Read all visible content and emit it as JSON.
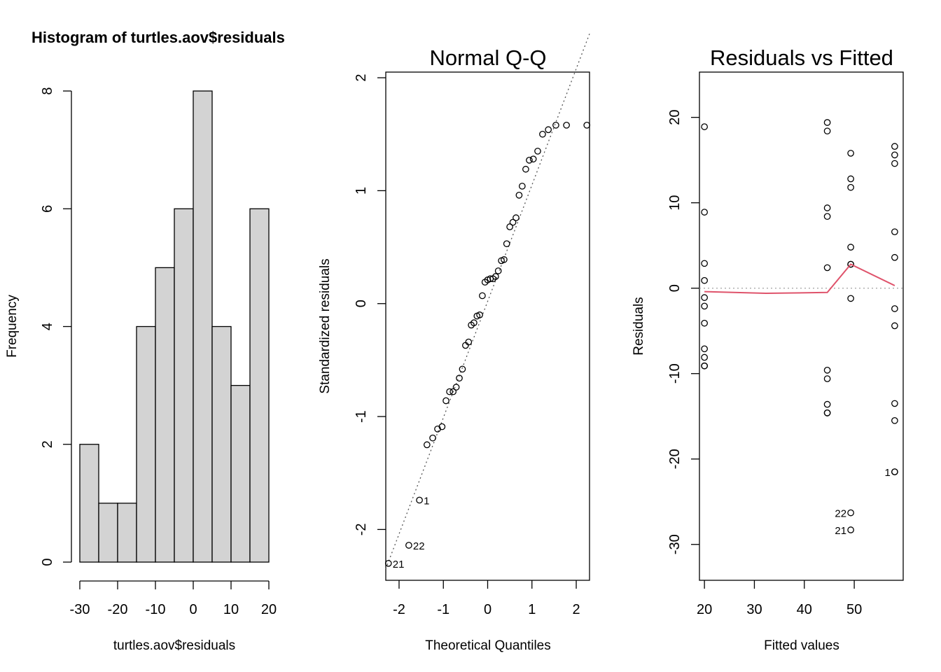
{
  "chart_data": [
    {
      "type": "bar",
      "title": "Histogram of turtles.aov$residuals",
      "xlabel": "turtles.aov$residuals",
      "ylabel": "Frequency",
      "breaks": [
        -30,
        -25,
        -20,
        -15,
        -10,
        -5,
        0,
        5,
        10,
        15,
        20
      ],
      "values": [
        2,
        1,
        1,
        4,
        5,
        6,
        8,
        4,
        3,
        6
      ],
      "xlim": [
        -30,
        20
      ],
      "ylim": [
        0,
        8
      ],
      "xticks": [
        "-30",
        "-20",
        "-10",
        "0",
        "10",
        "20"
      ],
      "yticks": [
        "0",
        "2",
        "4",
        "6",
        "8"
      ],
      "bar_fill": "#d3d3d3"
    },
    {
      "type": "scatter",
      "title": "Normal Q-Q",
      "xlabel": "Theoretical Quantiles",
      "ylabel": "Standardized residuals",
      "xlim": [
        -2.3,
        2.3
      ],
      "ylim": [
        -2.45,
        2.05
      ],
      "xticks": [
        "-2",
        "-1",
        "0",
        "1",
        "2"
      ],
      "yticks": [
        "-2",
        "-1",
        "0",
        "1",
        "2"
      ],
      "reference_line": {
        "intercept": 0.02,
        "slope": 1.03,
        "style": "dotted",
        "color": "#555555"
      },
      "labeled_points": [
        {
          "label": "21",
          "x": -2.24,
          "y": -2.3
        },
        {
          "label": "22",
          "x": -1.78,
          "y": -2.14
        },
        {
          "label": "1",
          "x": -1.54,
          "y": -1.74
        }
      ],
      "x": [
        -2.24,
        -1.78,
        -1.54,
        -1.37,
        -1.24,
        -1.13,
        -1.03,
        -0.94,
        -0.86,
        -0.78,
        -0.71,
        -0.64,
        -0.57,
        -0.5,
        -0.43,
        -0.37,
        -0.31,
        -0.24,
        -0.18,
        -0.12,
        -0.06,
        0.0,
        0.06,
        0.12,
        0.18,
        0.24,
        0.31,
        0.37,
        0.43,
        0.5,
        0.57,
        0.64,
        0.71,
        0.78,
        0.86,
        0.94,
        1.03,
        1.13,
        1.24,
        1.37,
        1.54,
        1.78,
        2.24
      ],
      "y": [
        -2.3,
        -2.14,
        -1.74,
        -1.25,
        -1.19,
        -1.11,
        -1.09,
        -0.86,
        -0.78,
        -0.78,
        -0.74,
        -0.66,
        -0.58,
        -0.37,
        -0.34,
        -0.19,
        -0.17,
        -0.11,
        -0.1,
        0.07,
        0.19,
        0.21,
        0.22,
        0.22,
        0.24,
        0.29,
        0.38,
        0.39,
        0.53,
        0.68,
        0.72,
        0.76,
        0.96,
        1.04,
        1.19,
        1.27,
        1.28,
        1.35,
        1.5,
        1.54,
        1.58,
        1.58,
        1.58
      ]
    },
    {
      "type": "scatter",
      "title": "Residuals vs Fitted",
      "xlabel": "Fitted values",
      "ylabel": "Residuals",
      "xlim": [
        19,
        59.8
      ],
      "ylim": [
        -34.2,
        25.3
      ],
      "xticks": [
        "20",
        "30",
        "40",
        "50"
      ],
      "yticks": [
        "-30",
        "-20",
        "-10",
        "0",
        "10",
        "20"
      ],
      "zero_line": {
        "style": "dotted",
        "color": "#aaaaaa"
      },
      "smooth_line": {
        "color": "#df536b",
        "x": [
          20,
          32.3,
          44.6,
          49.3,
          58.1
        ],
        "y": [
          -0.4,
          -0.6,
          -0.5,
          2.8,
          0.3
        ]
      },
      "labeled_points": [
        {
          "label": "1",
          "x": 58.1,
          "y": -21.5
        },
        {
          "label": "22",
          "x": 49.3,
          "y": -26.3
        },
        {
          "label": "21",
          "x": 49.3,
          "y": -28.3
        }
      ],
      "x": [
        20,
        20,
        20,
        20,
        20,
        20,
        20,
        20,
        20,
        20,
        20,
        44.6,
        44.6,
        44.6,
        44.6,
        44.6,
        44.6,
        44.6,
        44.6,
        44.6,
        44.6,
        49.3,
        49.3,
        49.3,
        49.3,
        49.3,
        49.3,
        49.3,
        49.3,
        49.3,
        58.1,
        58.1,
        58.1,
        58.1,
        58.1,
        58.1,
        58.1,
        58.1,
        58.1,
        58.1,
        58.1
      ],
      "y": [
        18.9,
        8.9,
        2.9,
        0.9,
        -1.1,
        -2.1,
        -4.1,
        -7.1,
        -8.1,
        -9.1,
        -9.1,
        19.4,
        18.4,
        9.4,
        8.4,
        2.4,
        -9.6,
        -10.6,
        -13.6,
        -14.6,
        -14.6,
        15.8,
        12.8,
        11.8,
        4.8,
        2.8,
        2.8,
        -1.2,
        -26.3,
        -28.3,
        16.6,
        15.6,
        14.6,
        6.6,
        3.6,
        -2.4,
        -4.4,
        -13.5,
        -15.5,
        -21.5,
        -21.5
      ]
    }
  ]
}
